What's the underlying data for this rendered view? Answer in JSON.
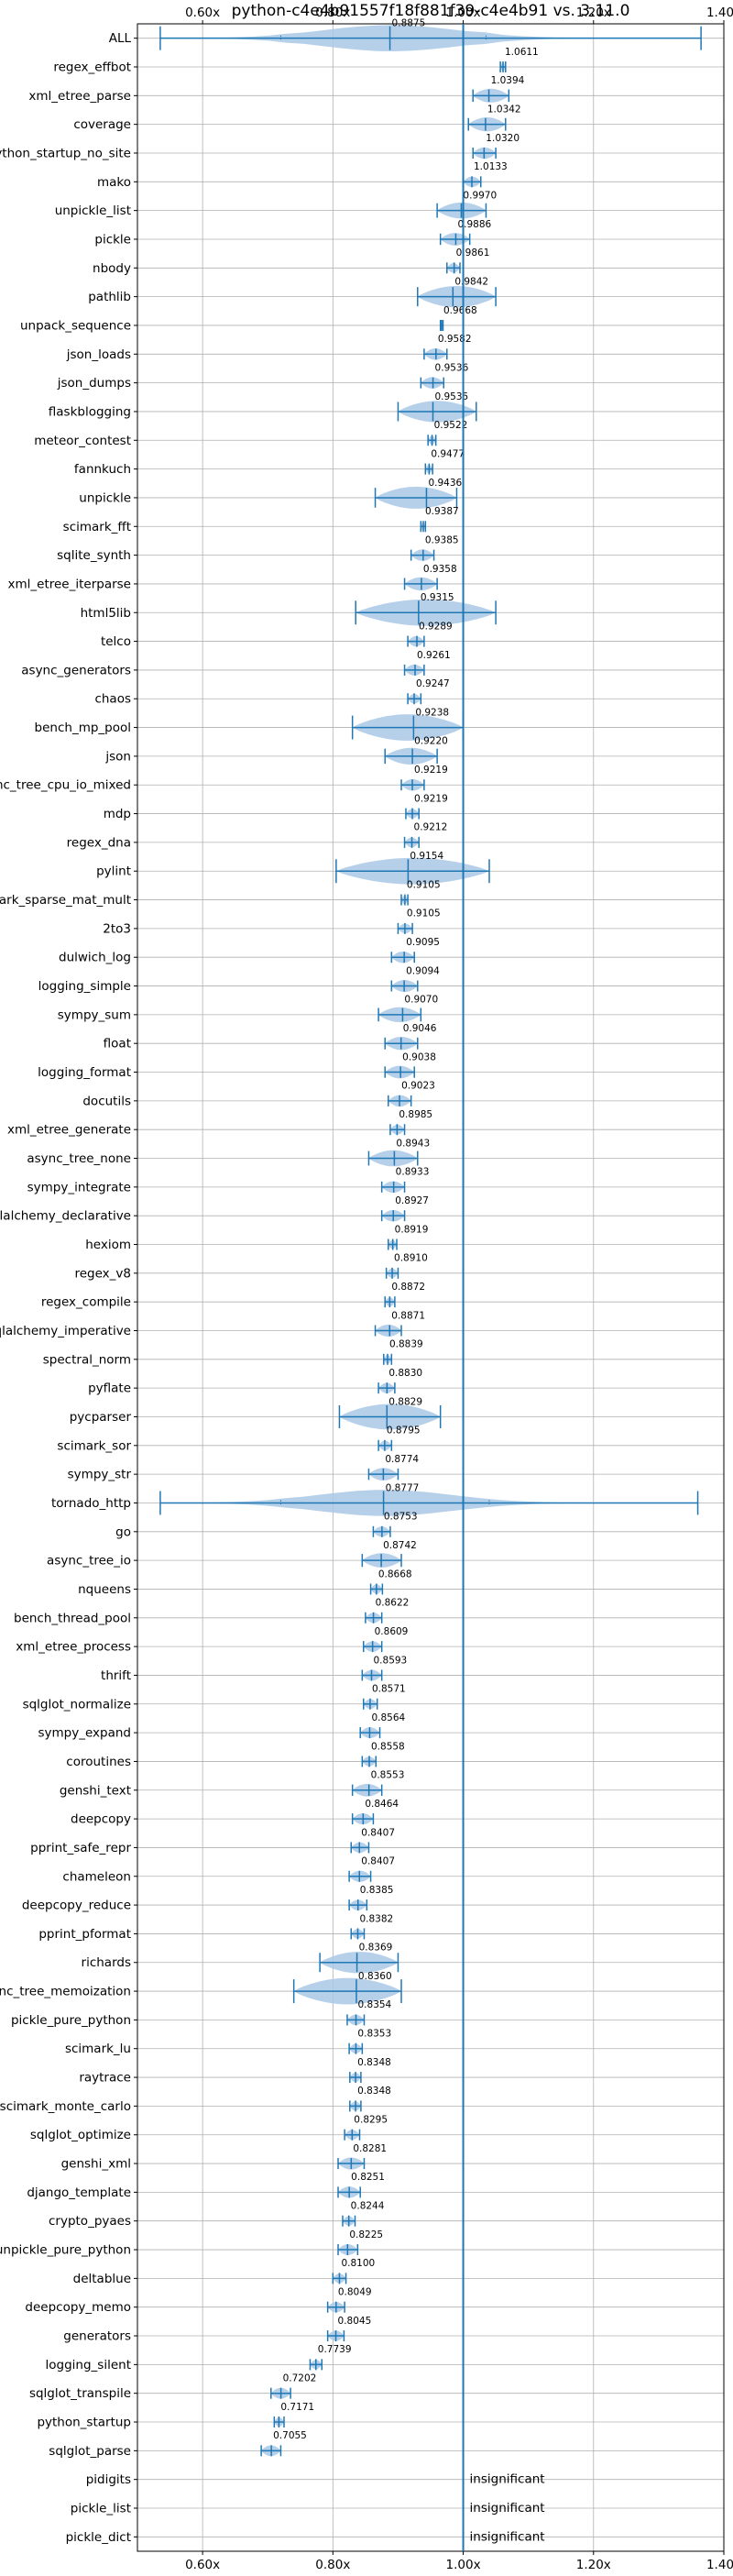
{
  "chart_data": {
    "type": "violin",
    "title": "python-c4e4b91557f18f881f39-c4e4b91 vs. 3.11.0",
    "xlabel": "",
    "ylabel": "",
    "xlim": [
      0.5,
      1.4
    ],
    "xticks": [
      0.6,
      0.8,
      1.0,
      1.2,
      1.4
    ],
    "xtick_labels": [
      "0.60x",
      "0.80x",
      "1.00x",
      "1.20x",
      "1.40x"
    ],
    "reference_line": 1.0,
    "grid": true,
    "color": "#1f77b4",
    "fill_color": "#a9c8e6",
    "insignificant_text": "insignificant",
    "benchmarks": [
      {
        "name": "ALL",
        "value": 0.8875,
        "label": "0.8875",
        "min": 0.535,
        "max": 1.365,
        "q_low": 0.72,
        "q_high": 1.035
      },
      {
        "name": "regex_effbot",
        "value": 1.0611,
        "label": "1.0611",
        "min": 1.057,
        "max": 1.065
      },
      {
        "name": "xml_etree_parse",
        "value": 1.0394,
        "label": "1.0394",
        "min": 1.015,
        "max": 1.07
      },
      {
        "name": "coverage",
        "value": 1.0342,
        "label": "1.0342",
        "min": 1.008,
        "max": 1.065
      },
      {
        "name": "python_startup_no_site",
        "value": 1.032,
        "label": "1.0320",
        "min": 1.015,
        "max": 1.05
      },
      {
        "name": "mako",
        "value": 1.0133,
        "label": "1.0133",
        "min": 1.0,
        "max": 1.027
      },
      {
        "name": "unpickle_list",
        "value": 0.997,
        "label": "0.9970",
        "min": 0.96,
        "max": 1.035
      },
      {
        "name": "pickle",
        "value": 0.9886,
        "label": "0.9886",
        "min": 0.965,
        "max": 1.01
      },
      {
        "name": "nbody",
        "value": 0.9861,
        "label": "0.9861",
        "min": 0.975,
        "max": 0.995
      },
      {
        "name": "pathlib",
        "value": 0.9842,
        "label": "0.9842",
        "min": 0.93,
        "max": 1.05
      },
      {
        "name": "unpack_sequence",
        "value": 0.9668,
        "label": "0.9668",
        "min": 0.965,
        "max": 0.969
      },
      {
        "name": "json_loads",
        "value": 0.9582,
        "label": "0.9582",
        "min": 0.94,
        "max": 0.975
      },
      {
        "name": "json_dumps",
        "value": 0.9536,
        "label": "0.9536",
        "min": 0.935,
        "max": 0.97
      },
      {
        "name": "flaskblogging",
        "value": 0.9535,
        "label": "0.9535",
        "min": 0.9,
        "max": 1.02
      },
      {
        "name": "meteor_contest",
        "value": 0.9522,
        "label": "0.9522",
        "min": 0.946,
        "max": 0.958
      },
      {
        "name": "fannkuch",
        "value": 0.9477,
        "label": "0.9477",
        "min": 0.942,
        "max": 0.953
      },
      {
        "name": "unpickle",
        "value": 0.9436,
        "label": "0.9436",
        "min": 0.865,
        "max": 0.99
      },
      {
        "name": "scimark_fft",
        "value": 0.9387,
        "label": "0.9387",
        "min": 0.935,
        "max": 0.942
      },
      {
        "name": "sqlite_synth",
        "value": 0.9385,
        "label": "0.9385",
        "min": 0.92,
        "max": 0.955
      },
      {
        "name": "xml_etree_iterparse",
        "value": 0.9358,
        "label": "0.9358",
        "min": 0.91,
        "max": 0.96
      },
      {
        "name": "html5lib",
        "value": 0.9315,
        "label": "0.9315",
        "min": 0.835,
        "max": 1.05
      },
      {
        "name": "telco",
        "value": 0.9289,
        "label": "0.9289",
        "min": 0.915,
        "max": 0.94
      },
      {
        "name": "async_generators",
        "value": 0.9261,
        "label": "0.9261",
        "min": 0.91,
        "max": 0.94
      },
      {
        "name": "chaos",
        "value": 0.9247,
        "label": "0.9247",
        "min": 0.915,
        "max": 0.935
      },
      {
        "name": "bench_mp_pool",
        "value": 0.9238,
        "label": "0.9238",
        "min": 0.83,
        "max": 1.0
      },
      {
        "name": "json",
        "value": 0.922,
        "label": "0.9220",
        "min": 0.88,
        "max": 0.96
      },
      {
        "name": "async_tree_cpu_io_mixed",
        "value": 0.9219,
        "label": "0.9219",
        "min": 0.905,
        "max": 0.94
      },
      {
        "name": "mdp",
        "value": 0.9219,
        "label": "0.9219",
        "min": 0.912,
        "max": 0.932
      },
      {
        "name": "regex_dna",
        "value": 0.9212,
        "label": "0.9212",
        "min": 0.91,
        "max": 0.932
      },
      {
        "name": "pylint",
        "value": 0.9154,
        "label": "0.9154",
        "min": 0.805,
        "max": 1.04
      },
      {
        "name": "scimark_sparse_mat_mult",
        "value": 0.9105,
        "label": "0.9105",
        "min": 0.905,
        "max": 0.915
      },
      {
        "name": "2to3",
        "value": 0.9105,
        "label": "0.9105",
        "min": 0.9,
        "max": 0.922
      },
      {
        "name": "dulwich_log",
        "value": 0.9095,
        "label": "0.9095",
        "min": 0.89,
        "max": 0.925
      },
      {
        "name": "logging_simple",
        "value": 0.9094,
        "label": "0.9094",
        "min": 0.89,
        "max": 0.93
      },
      {
        "name": "sympy_sum",
        "value": 0.907,
        "label": "0.9070",
        "min": 0.87,
        "max": 0.935
      },
      {
        "name": "float",
        "value": 0.9046,
        "label": "0.9046",
        "min": 0.88,
        "max": 0.93
      },
      {
        "name": "logging_format",
        "value": 0.9038,
        "label": "0.9038",
        "min": 0.88,
        "max": 0.925
      },
      {
        "name": "docutils",
        "value": 0.9023,
        "label": "0.9023",
        "min": 0.885,
        "max": 0.92
      },
      {
        "name": "xml_etree_generate",
        "value": 0.8985,
        "label": "0.8985",
        "min": 0.888,
        "max": 0.91
      },
      {
        "name": "async_tree_none",
        "value": 0.8943,
        "label": "0.8943",
        "min": 0.855,
        "max": 0.93
      },
      {
        "name": "sympy_integrate",
        "value": 0.8933,
        "label": "0.8933",
        "min": 0.875,
        "max": 0.91
      },
      {
        "name": "sqlalchemy_declarative",
        "value": 0.8927,
        "label": "0.8927",
        "min": 0.875,
        "max": 0.91
      },
      {
        "name": "hexiom",
        "value": 0.8919,
        "label": "0.8919",
        "min": 0.885,
        "max": 0.898
      },
      {
        "name": "regex_v8",
        "value": 0.891,
        "label": "0.8910",
        "min": 0.882,
        "max": 0.9
      },
      {
        "name": "regex_compile",
        "value": 0.8872,
        "label": "0.8872",
        "min": 0.88,
        "max": 0.895
      },
      {
        "name": "sqlalchemy_imperative",
        "value": 0.8871,
        "label": "0.8871",
        "min": 0.865,
        "max": 0.905
      },
      {
        "name": "spectral_norm",
        "value": 0.8839,
        "label": "0.8839",
        "min": 0.878,
        "max": 0.89
      },
      {
        "name": "pyflate",
        "value": 0.883,
        "label": "0.8830",
        "min": 0.87,
        "max": 0.895
      },
      {
        "name": "pycparser",
        "value": 0.8829,
        "label": "0.8829",
        "min": 0.81,
        "max": 0.965
      },
      {
        "name": "scimark_sor",
        "value": 0.8795,
        "label": "0.8795",
        "min": 0.87,
        "max": 0.89
      },
      {
        "name": "sympy_str",
        "value": 0.8774,
        "label": "0.8774",
        "min": 0.855,
        "max": 0.9
      },
      {
        "name": "tornado_http",
        "value": 0.8777,
        "label": "0.8777",
        "min": 0.535,
        "max": 1.36,
        "q_low": 0.72,
        "q_high": 1.04
      },
      {
        "name": "go",
        "value": 0.8753,
        "label": "0.8753",
        "min": 0.862,
        "max": 0.888
      },
      {
        "name": "async_tree_io",
        "value": 0.8742,
        "label": "0.8742",
        "min": 0.845,
        "max": 0.905
      },
      {
        "name": "nqueens",
        "value": 0.8668,
        "label": "0.8668",
        "min": 0.858,
        "max": 0.876
      },
      {
        "name": "bench_thread_pool",
        "value": 0.8622,
        "label": "0.8622",
        "min": 0.85,
        "max": 0.875
      },
      {
        "name": "xml_etree_process",
        "value": 0.8609,
        "label": "0.8609",
        "min": 0.847,
        "max": 0.875
      },
      {
        "name": "thrift",
        "value": 0.8593,
        "label": "0.8593",
        "min": 0.845,
        "max": 0.875
      },
      {
        "name": "sqlglot_normalize",
        "value": 0.8571,
        "label": "0.8571",
        "min": 0.847,
        "max": 0.868
      },
      {
        "name": "sympy_expand",
        "value": 0.8564,
        "label": "0.8564",
        "min": 0.842,
        "max": 0.872
      },
      {
        "name": "coroutines",
        "value": 0.8558,
        "label": "0.8558",
        "min": 0.845,
        "max": 0.866
      },
      {
        "name": "genshi_text",
        "value": 0.8553,
        "label": "0.8553",
        "min": 0.83,
        "max": 0.875
      },
      {
        "name": "deepcopy",
        "value": 0.8464,
        "label": "0.8464",
        "min": 0.83,
        "max": 0.862
      },
      {
        "name": "pprint_safe_repr",
        "value": 0.8407,
        "label": "0.8407",
        "min": 0.828,
        "max": 0.855
      },
      {
        "name": "chameleon",
        "value": 0.8407,
        "label": "0.8407",
        "min": 0.825,
        "max": 0.858
      },
      {
        "name": "deepcopy_reduce",
        "value": 0.8385,
        "label": "0.8385",
        "min": 0.825,
        "max": 0.852
      },
      {
        "name": "pprint_pformat",
        "value": 0.8382,
        "label": "0.8382",
        "min": 0.828,
        "max": 0.848
      },
      {
        "name": "richards",
        "value": 0.8369,
        "label": "0.8369",
        "min": 0.78,
        "max": 0.9
      },
      {
        "name": "async_tree_memoization",
        "value": 0.836,
        "label": "0.8360",
        "min": 0.74,
        "max": 0.905
      },
      {
        "name": "pickle_pure_python",
        "value": 0.8354,
        "label": "0.8354",
        "min": 0.822,
        "max": 0.848
      },
      {
        "name": "scimark_lu",
        "value": 0.8353,
        "label": "0.8353",
        "min": 0.825,
        "max": 0.845
      },
      {
        "name": "raytrace",
        "value": 0.8348,
        "label": "0.8348",
        "min": 0.826,
        "max": 0.843
      },
      {
        "name": "scimark_monte_carlo",
        "value": 0.8348,
        "label": "0.8348",
        "min": 0.826,
        "max": 0.843
      },
      {
        "name": "sqlglot_optimize",
        "value": 0.8295,
        "label": "0.8295",
        "min": 0.818,
        "max": 0.841
      },
      {
        "name": "genshi_xml",
        "value": 0.8281,
        "label": "0.8281",
        "min": 0.808,
        "max": 0.848
      },
      {
        "name": "django_template",
        "value": 0.8251,
        "label": "0.8251",
        "min": 0.808,
        "max": 0.842
      },
      {
        "name": "crypto_pyaes",
        "value": 0.8244,
        "label": "0.8244",
        "min": 0.815,
        "max": 0.834
      },
      {
        "name": "unpickle_pure_python",
        "value": 0.8225,
        "label": "0.8225",
        "min": 0.808,
        "max": 0.838
      },
      {
        "name": "deltablue",
        "value": 0.81,
        "label": "0.8100",
        "min": 0.8,
        "max": 0.82
      },
      {
        "name": "deepcopy_memo",
        "value": 0.8049,
        "label": "0.8049",
        "min": 0.792,
        "max": 0.818
      },
      {
        "name": "generators",
        "value": 0.8045,
        "label": "0.8045",
        "min": 0.792,
        "max": 0.817
      },
      {
        "name": "logging_silent",
        "value": 0.7739,
        "label": "0.7739",
        "min": 0.765,
        "max": 0.783
      },
      {
        "name": "sqlglot_transpile",
        "value": 0.7202,
        "label": "0.7202",
        "min": 0.705,
        "max": 0.735
      },
      {
        "name": "python_startup",
        "value": 0.7171,
        "label": "0.7171",
        "min": 0.71,
        "max": 0.725
      },
      {
        "name": "sqlglot_parse",
        "value": 0.7055,
        "label": "0.7055",
        "min": 0.69,
        "max": 0.72
      },
      {
        "name": "pidigits",
        "value": null,
        "label": "",
        "insignificant": true
      },
      {
        "name": "pickle_list",
        "value": null,
        "label": "",
        "insignificant": true
      },
      {
        "name": "pickle_dict",
        "value": null,
        "label": "",
        "insignificant": true
      }
    ]
  }
}
